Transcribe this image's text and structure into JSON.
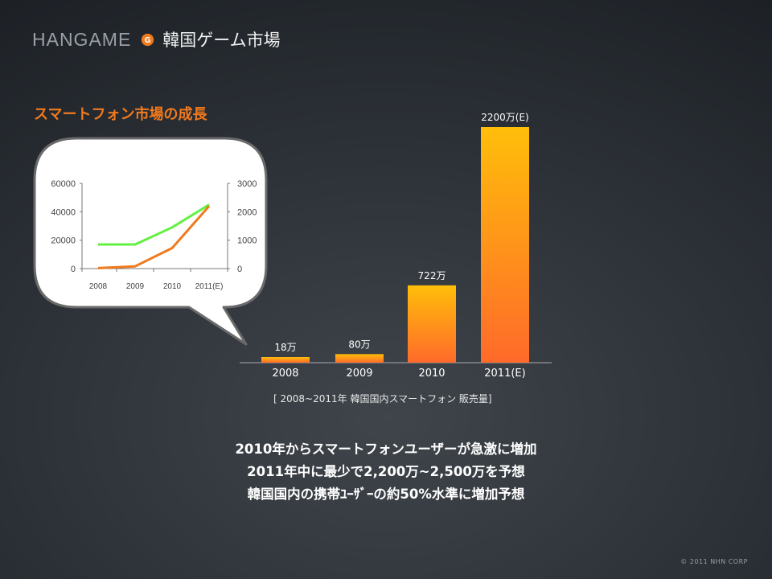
{
  "header": {
    "brand": "HANGAME",
    "logo_letter": "G",
    "title": "韓国ゲーム市場"
  },
  "section_title": "スマートフォン市場の成長",
  "source_note": "[ 2008~2011年 韓国国内スマートフォン 販売量]",
  "summary_lines": [
    "2010年からスマートフォンユーザーが急激に増加",
    "2011年中に最少で2,200万~2,500万を予想",
    "韓国国内の携帯ﾕｰｻﾞｰの約50%水準に増加予想"
  ],
  "copyright": "© 2011 NHN CORP",
  "colors": {
    "accent": "#f07a1e",
    "bar_top": "#ffbe0a",
    "bar_bottom": "#ff6a2a",
    "line_green": "#62f041",
    "line_orange": "#f07a1e"
  },
  "chart_data": [
    {
      "type": "line",
      "categories": [
        "2008",
        "2009",
        "2010",
        "2011(E)"
      ],
      "y_left_ticks": [
        "0",
        "20000",
        "40000",
        "60000"
      ],
      "y_left_range": [
        0,
        60000
      ],
      "y_right_ticks": [
        "0",
        "1000",
        "2000",
        "3000"
      ],
      "y_right_range": [
        0,
        3000
      ],
      "series": [
        {
          "color": "green",
          "axis": "left",
          "values": [
            17000,
            17000,
            29000,
            45000
          ]
        },
        {
          "color": "orange",
          "axis": "right",
          "values": [
            18,
            80,
            722,
            2200
          ]
        }
      ]
    },
    {
      "type": "bar",
      "categories": [
        "2008",
        "2009",
        "2010",
        "2011(E)"
      ],
      "values": [
        18,
        80,
        722,
        2200
      ],
      "data_labels": [
        "18万",
        "80万",
        "722万",
        "2200万(E)"
      ]
    }
  ]
}
